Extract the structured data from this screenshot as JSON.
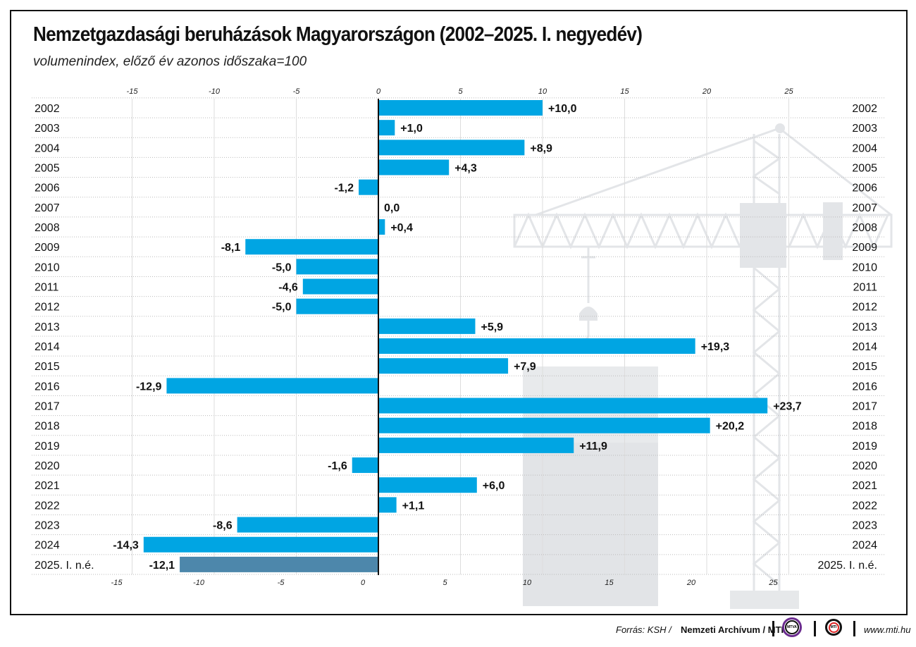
{
  "title": "Nemzetgazdasági beruházások Magyarországon (2002–2025. I. negyedév)",
  "subtitle": "volumenindex, előző év azonos időszaka=100",
  "chart_data": {
    "type": "bar",
    "orientation": "horizontal",
    "categories": [
      "2002",
      "2003",
      "2004",
      "2005",
      "2006",
      "2007",
      "2008",
      "2009",
      "2010",
      "2011",
      "2012",
      "2013",
      "2014",
      "2015",
      "2016",
      "2017",
      "2018",
      "2019",
      "2020",
      "2021",
      "2022",
      "2023",
      "2024",
      "2025. I. n.é."
    ],
    "values": [
      10.0,
      1.0,
      8.9,
      4.3,
      -1.2,
      0.0,
      0.4,
      -8.1,
      -5.0,
      -4.6,
      -5.0,
      5.9,
      19.3,
      7.9,
      -12.9,
      23.7,
      20.2,
      11.9,
      -1.6,
      6.0,
      1.1,
      -8.6,
      -14.3,
      -12.1
    ],
    "data_labels": [
      "+10,0",
      "+1,0",
      "+8,9",
      "+4,3",
      "-1,2",
      "0,0",
      "+0,4",
      "-8,1",
      "-5,0",
      "-4,6",
      "-5,0",
      "+5,9",
      "+19,3",
      "+7,9",
      "-12,9",
      "+23,7",
      "+20,2",
      "+11,9",
      "-1,6",
      "+6,0",
      "+1,1",
      "-8,6",
      "-14,3",
      "-12,1"
    ],
    "x_ticks": [
      "-15",
      "-10",
      "-5",
      "0",
      "5",
      "10",
      "15",
      "20",
      "25"
    ],
    "x_tick_values": [
      -15,
      -10,
      -5,
      0,
      5,
      10,
      15,
      20,
      25
    ],
    "xlim": [
      -21,
      30
    ],
    "grid": true,
    "colors": {
      "bar": "#00a5e3",
      "bar_last": "#4d87ab",
      "background_art": "#e6e8ea"
    }
  },
  "footer": {
    "source_prefix": "Forrás: KSH /",
    "source_bold": "Nemzeti Archívum / MTI",
    "logo1": "MTVA",
    "logo2": "MTI",
    "url": "www.mti.hu"
  }
}
